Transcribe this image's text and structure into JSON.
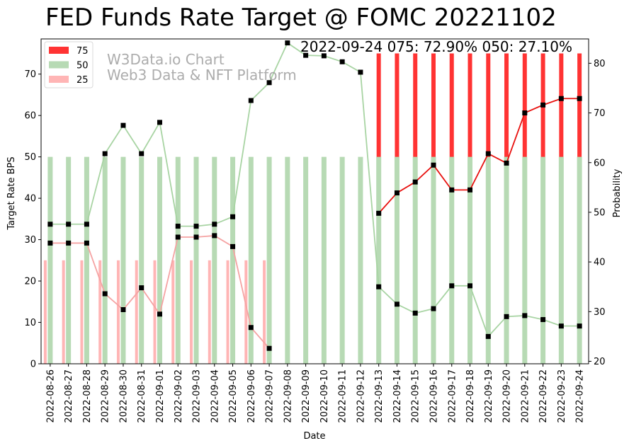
{
  "chart_data": {
    "type": "bar",
    "title": "FED Funds Rate Target @ FOMC 20221102",
    "annotation": "2022-09-24 075: 72.90% 050: 27.10%",
    "watermark": [
      "W3Data.io Chart",
      "Web3 Data & NFT Platform"
    ],
    "xlabel": "Date",
    "ylabel": "Target Rate BPS",
    "y2label": "Probability",
    "ylim": [
      0,
      78.5
    ],
    "y2lim": [
      19.5,
      84.9
    ],
    "yticks": [
      0,
      10,
      20,
      30,
      40,
      50,
      60,
      70
    ],
    "y2ticks": [
      20,
      30,
      40,
      50,
      60,
      70,
      80
    ],
    "categories": [
      "2022-08-26",
      "2022-08-27",
      "2022-08-28",
      "2022-08-29",
      "2022-08-30",
      "2022-08-31",
      "2022-09-01",
      "2022-09-02",
      "2022-09-03",
      "2022-09-04",
      "2022-09-05",
      "2022-09-06",
      "2022-09-07",
      "2022-09-08",
      "2022-09-09",
      "2022-09-10",
      "2022-09-11",
      "2022-09-12",
      "2022-09-13",
      "2022-09-14",
      "2022-09-15",
      "2022-09-16",
      "2022-09-17",
      "2022-09-18",
      "2022-09-19",
      "2022-09-20",
      "2022-09-21",
      "2022-09-22",
      "2022-09-23",
      "2022-09-24"
    ],
    "legend": {
      "position": "upper-left"
    },
    "series": [
      {
        "name": "75",
        "kind": "bar",
        "color": "#ff3333",
        "values": [
          0,
          0,
          0,
          0,
          0,
          0,
          0,
          0,
          0,
          0,
          0,
          0,
          0,
          0,
          0,
          0,
          0,
          0,
          75,
          75,
          75,
          75,
          75,
          75,
          75,
          75,
          75,
          75,
          75,
          75
        ]
      },
      {
        "name": "50",
        "kind": "bar",
        "color": "#b7dab4",
        "values": [
          50,
          50,
          50,
          50,
          50,
          50,
          50,
          50,
          50,
          50,
          50,
          50,
          50,
          50,
          50,
          50,
          50,
          50,
          50,
          50,
          50,
          50,
          50,
          50,
          50,
          50,
          50,
          50,
          50,
          50
        ]
      },
      {
        "name": "25",
        "kind": "bar",
        "color": "#ffb5b5",
        "values": [
          25,
          25,
          25,
          25,
          25,
          25,
          25,
          25,
          25,
          25,
          25,
          25,
          25,
          0,
          0,
          0,
          0,
          0,
          0,
          0,
          0,
          0,
          0,
          0,
          0,
          0,
          0,
          0,
          0,
          0
        ]
      }
    ],
    "probability_lines": [
      {
        "target": "75",
        "color": "#e8110f",
        "values": [
          null,
          null,
          null,
          null,
          null,
          null,
          null,
          null,
          null,
          null,
          null,
          null,
          null,
          null,
          null,
          null,
          null,
          null,
          49.8,
          53.9,
          56.1,
          59.5,
          54.5,
          54.5,
          61.8,
          59.9,
          70.0,
          71.6,
          72.9,
          72.9
        ]
      },
      {
        "target": "50",
        "color": "#a8d4a3",
        "values": [
          47.6,
          47.6,
          47.6,
          61.8,
          67.5,
          61.8,
          68.1,
          47.2,
          47.2,
          47.6,
          49.1,
          72.5,
          76.1,
          84.1,
          81.6,
          81.5,
          80.3,
          78.2,
          35.0,
          31.5,
          29.7,
          30.6,
          35.2,
          35.2,
          25.0,
          29.0,
          29.2,
          28.4,
          27.1,
          27.1
        ]
      },
      {
        "target": "25",
        "color": "#f5a3a3",
        "values": [
          43.8,
          43.8,
          43.8,
          33.6,
          30.4,
          34.8,
          29.5,
          45.0,
          45.0,
          45.3,
          43.1,
          26.8,
          22.6,
          null,
          null,
          null,
          null,
          null,
          null,
          null,
          null,
          null,
          null,
          null,
          null,
          null,
          null,
          null,
          null,
          null
        ]
      }
    ]
  }
}
